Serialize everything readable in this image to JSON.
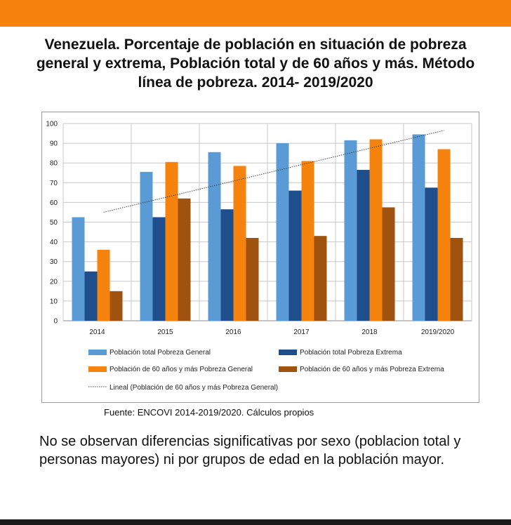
{
  "title": "Venezuela. Porcentaje de población en situación de pobreza general y extrema, Población total y de 60 años y más. Método línea de pobreza. 2014- 2019/2020",
  "source": "Fuente: ENCOVI 2014-2019/2020. Cálculos propios",
  "note": "No se observan diferencias significativas por sexo (poblacion total y personas mayores) ni por grupos de edad en la población mayor.",
  "colors": {
    "accent_bar": "#f7830f",
    "bottom_bar": "#1a1a1a"
  },
  "chart_data": {
    "type": "bar",
    "categories": [
      "2014",
      "2015",
      "2016",
      "2017",
      "2018",
      "2019/2020"
    ],
    "y_ticks": [
      "0",
      "10",
      "20",
      "30",
      "40",
      "50",
      "60",
      "70",
      "80",
      "90",
      "100"
    ],
    "ylim": [
      0,
      100
    ],
    "grid": true,
    "legend_position": "bottom",
    "series": [
      {
        "name": "Población total Pobreza General",
        "color": "#5b9bd5",
        "values": [
          52.5,
          75.5,
          85.5,
          90,
          91.5,
          94.5
        ]
      },
      {
        "name": "Población total Pobreza Extrema",
        "color": "#1f4e8c",
        "values": [
          25,
          52.5,
          56.5,
          66,
          76.5,
          67.5
        ]
      },
      {
        "name": "Población de 60 años y más Pobreza General",
        "color": "#f7830f",
        "values": [
          36,
          80.5,
          78.5,
          81,
          92,
          87
        ]
      },
      {
        "name": "Población de 60 años y más Pobreza Extrema",
        "color": "#a0520f",
        "values": [
          15,
          62,
          42,
          43,
          57.5,
          42
        ]
      }
    ],
    "trendline": {
      "name": "Lineal (Población de 60 años y más Pobreza General)",
      "series_index": 2,
      "start": 55,
      "end": 96.5
    }
  }
}
